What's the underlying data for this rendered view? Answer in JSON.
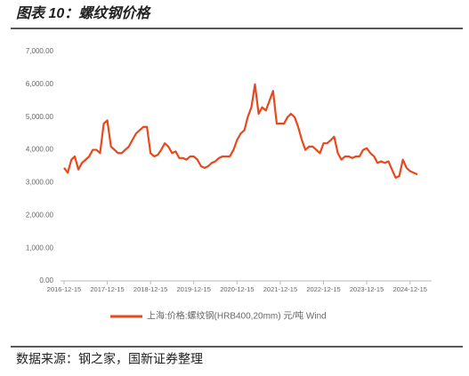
{
  "chart_data": {
    "type": "line",
    "title": "图表 10：螺纹钢价格",
    "source": "数据来源：钢之家，国新证券整理",
    "x": [
      "2016-12-15",
      "2017-01-15",
      "2017-02-15",
      "2017-03-15",
      "2017-04-15",
      "2017-05-15",
      "2017-06-15",
      "2017-07-15",
      "2017-08-15",
      "2017-09-15",
      "2017-10-15",
      "2017-11-15",
      "2017-12-15",
      "2018-01-15",
      "2018-02-15",
      "2018-03-15",
      "2018-04-15",
      "2018-05-15",
      "2018-06-15",
      "2018-07-15",
      "2018-08-15",
      "2018-09-15",
      "2018-10-15",
      "2018-11-15",
      "2018-12-15",
      "2019-01-15",
      "2019-02-15",
      "2019-03-15",
      "2019-04-15",
      "2019-05-15",
      "2019-06-15",
      "2019-07-15",
      "2019-08-15",
      "2019-09-15",
      "2019-10-15",
      "2019-11-15",
      "2019-12-15",
      "2020-01-15",
      "2020-02-15",
      "2020-03-15",
      "2020-04-15",
      "2020-05-15",
      "2020-06-15",
      "2020-07-15",
      "2020-08-15",
      "2020-09-15",
      "2020-10-15",
      "2020-11-15",
      "2020-12-15",
      "2021-01-15",
      "2021-02-15",
      "2021-03-15",
      "2021-04-15",
      "2021-05-15",
      "2021-06-15",
      "2021-07-15",
      "2021-08-15",
      "2021-09-15",
      "2021-10-15",
      "2021-11-15",
      "2021-12-15",
      "2022-01-15",
      "2022-02-15",
      "2022-03-15",
      "2022-04-15",
      "2022-05-15",
      "2022-06-15",
      "2022-07-15",
      "2022-08-15",
      "2022-09-15",
      "2022-10-15",
      "2022-11-15",
      "2022-12-15",
      "2023-01-15",
      "2023-02-15",
      "2023-03-15",
      "2023-04-15",
      "2023-05-15",
      "2023-06-15",
      "2023-07-15",
      "2023-08-15",
      "2023-09-15",
      "2023-10-15",
      "2023-11-15",
      "2023-12-15",
      "2024-01-15",
      "2024-02-15",
      "2024-03-15",
      "2024-04-15",
      "2024-05-15",
      "2024-06-15",
      "2024-07-15",
      "2024-08-15",
      "2024-09-15",
      "2024-10-15",
      "2024-11-15",
      "2024-12-15",
      "2025-01-15",
      "2025-02-15"
    ],
    "series": [
      {
        "name": "上海:价格:螺纹钢(HRB400,20mm) 元/吨 Wind",
        "color": "#e8481c",
        "values": [
          3450,
          3300,
          3700,
          3800,
          3400,
          3600,
          3700,
          3800,
          4000,
          4000,
          3900,
          4800,
          4900,
          4100,
          4000,
          3900,
          3900,
          4000,
          4100,
          4300,
          4500,
          4600,
          4700,
          4700,
          3900,
          3800,
          3850,
          4000,
          4200,
          4100,
          3900,
          3950,
          3750,
          3750,
          3700,
          3800,
          3800,
          3700,
          3500,
          3450,
          3500,
          3600,
          3650,
          3750,
          3800,
          3800,
          3800,
          4000,
          4300,
          4500,
          4600,
          5000,
          5300,
          6000,
          5100,
          5300,
          5200,
          5500,
          5800,
          4800,
          4800,
          4800,
          5000,
          5100,
          5000,
          4700,
          4300,
          4000,
          4100,
          4100,
          4000,
          3900,
          4200,
          4200,
          4300,
          4400,
          3900,
          3700,
          3800,
          3800,
          3750,
          3800,
          3800,
          4000,
          4050,
          3900,
          3800,
          3600,
          3650,
          3600,
          3650,
          3400,
          3150,
          3200,
          3700,
          3450,
          3350,
          3300,
          3250
        ]
      }
    ],
    "xlim": [
      "2016-11-15",
      "2025-06-15"
    ],
    "xticks": [
      "2016-12-15",
      "2017-12-15",
      "2018-12-15",
      "2019-12-15",
      "2020-12-15",
      "2021-12-15",
      "2022-12-15",
      "2023-12-15",
      "2024-12-15"
    ],
    "ylim": [
      0,
      7000
    ],
    "yticks": [
      {
        "value": 0,
        "label": "0.00"
      },
      {
        "value": 1000,
        "label": "1,000.00"
      },
      {
        "value": 2000,
        "label": "2,000.00"
      },
      {
        "value": 3000,
        "label": "3,000.00"
      },
      {
        "value": 4000,
        "label": "4,000.00"
      },
      {
        "value": 5000,
        "label": "5,000.00"
      },
      {
        "value": 6000,
        "label": "6,000.00"
      },
      {
        "value": 7000,
        "label": "7,000.00"
      }
    ],
    "legend": "bottom"
  }
}
